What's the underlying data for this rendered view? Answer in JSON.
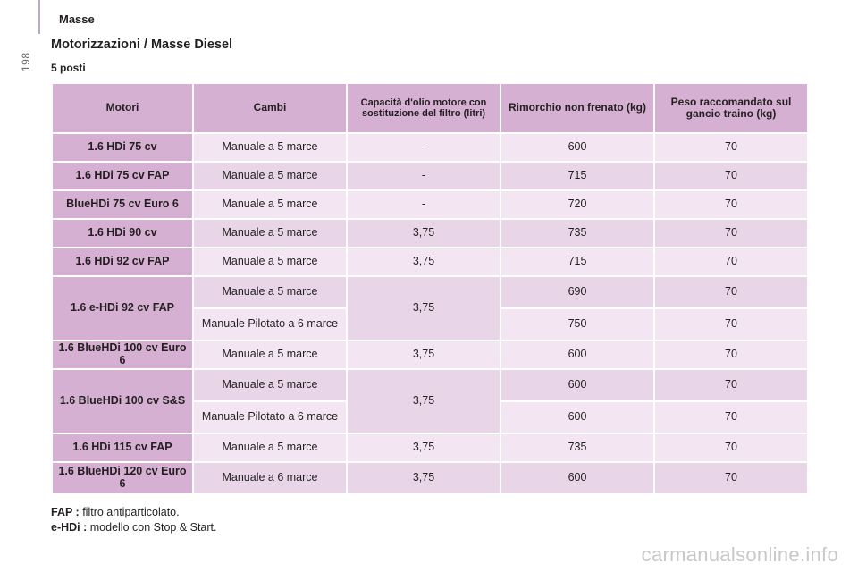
{
  "page": {
    "number": "198",
    "section": "Masse"
  },
  "title": "Motorizzazioni / Masse Diesel",
  "subtitle": "5 posti",
  "table": {
    "headers": {
      "engine": "Motori",
      "gearbox": "Cambi",
      "oil": "Capacità d'olio motore con sostituzione del filtro (litri)",
      "trailer": "Rimorchio non frenato (kg)",
      "towball": "Peso raccomandato sul gancio traino (kg)"
    },
    "rows": [
      {
        "engine": "1.6 HDi 75 cv",
        "gearbox": "Manuale a 5 marce",
        "oil": "-",
        "trailer": "600",
        "towball": "70"
      },
      {
        "engine": "1.6 HDi 75 cv FAP",
        "gearbox": "Manuale a 5 marce",
        "oil": "-",
        "trailer": "715",
        "towball": "70"
      },
      {
        "engine": "BlueHDi 75 cv Euro 6",
        "gearbox": "Manuale a 5 marce",
        "oil": "-",
        "trailer": "720",
        "towball": "70"
      },
      {
        "engine": "1.6 HDi 90 cv",
        "gearbox": "Manuale a 5 marce",
        "oil": "3,75",
        "trailer": "735",
        "towball": "70"
      },
      {
        "engine": "1.6 HDi 92 cv FAP",
        "gearbox": "Manuale a 5 marce",
        "oil": "3,75",
        "trailer": "715",
        "towball": "70"
      },
      {
        "engine": "1.6 e-HDi 92 cv FAP",
        "gearbox": "Manuale a 5 marce",
        "oil": "3,75",
        "trailer": "690",
        "towball": "70"
      },
      {
        "gearbox": "Manuale Pilotato a 6 marce",
        "trailer": "750",
        "towball": "70"
      },
      {
        "engine": "1.6 BlueHDi 100 cv Euro 6",
        "gearbox": "Manuale a 5 marce",
        "oil": "3,75",
        "trailer": "600",
        "towball": "70"
      },
      {
        "engine": "1.6 BlueHDi 100 cv S&S",
        "gearbox": "Manuale a 5 marce",
        "oil": "3,75",
        "trailer": "600",
        "towball": "70"
      },
      {
        "gearbox": "Manuale Pilotato a 6 marce",
        "trailer": "600",
        "towball": "70"
      },
      {
        "engine": "1.6 HDi 115 cv FAP",
        "gearbox": "Manuale a 5 marce",
        "oil": "3,75",
        "trailer": "735",
        "towball": "70"
      },
      {
        "engine": "1.6 BlueHDi 120 cv Euro 6",
        "gearbox": "Manuale a 6 marce",
        "oil": "3,75",
        "trailer": "600",
        "towball": "70"
      }
    ]
  },
  "footnotes": [
    {
      "term": "FAP :",
      "text": " filtro antiparticolato."
    },
    {
      "term": "e-HDi :",
      "text": " modello con Stop & Start."
    }
  ],
  "watermark": "carmanualsonline.info"
}
